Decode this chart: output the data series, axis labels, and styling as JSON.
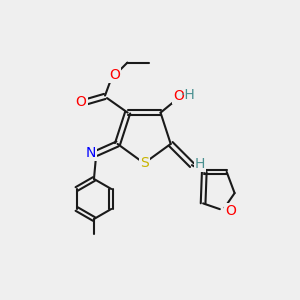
{
  "bg_color": "#efefef",
  "bond_color": "#1a1a1a",
  "atom_colors": {
    "O": "#ff0000",
    "S": "#c8b400",
    "N": "#0000ff",
    "H": "#4a9090",
    "C": "#1a1a1a"
  },
  "font_size": 9,
  "figsize": [
    3.0,
    3.0
  ],
  "dpi": 100
}
